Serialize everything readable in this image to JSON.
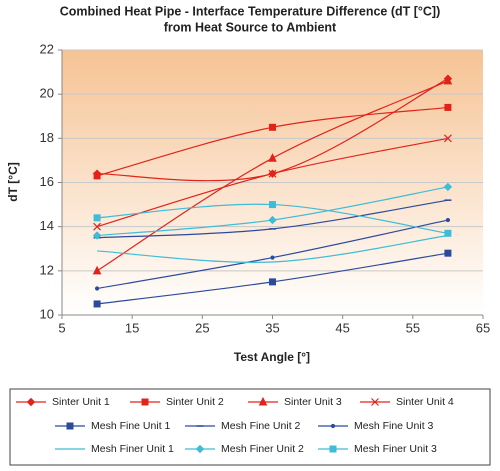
{
  "chart_data": {
    "type": "line",
    "title": [
      "Combined Heat Pipe - Interface Temperature Difference (dT [°C])",
      "from Heat Source to Ambient"
    ],
    "x_label": "Test Angle [°]",
    "y_label": "dT [°C]",
    "x": [
      10,
      35,
      60
    ],
    "xlim": [
      5,
      65
    ],
    "xticks": [
      5,
      15,
      25,
      35,
      45,
      55,
      65
    ],
    "ylim": [
      10,
      22
    ],
    "yticks": [
      10,
      12,
      14,
      16,
      18,
      20,
      22
    ],
    "grid": true,
    "smooth": true,
    "legend": "bottom",
    "series": [
      {
        "name": "Sinter Unit 1",
        "color": "#e2231a",
        "marker": "diamond",
        "values": [
          16.4,
          16.4,
          20.7
        ]
      },
      {
        "name": "Sinter Unit 2",
        "color": "#e2231a",
        "marker": "square",
        "values": [
          16.3,
          18.5,
          19.4
        ]
      },
      {
        "name": "Sinter Unit 3",
        "color": "#e2231a",
        "marker": "triangle",
        "values": [
          12.0,
          17.1,
          20.6
        ]
      },
      {
        "name": "Sinter Unit 4",
        "color": "#e2231a",
        "marker": "x",
        "values": [
          14.0,
          16.4,
          18.0
        ]
      },
      {
        "name": "Mesh Fine Unit 1",
        "color": "#2b4a9c",
        "marker": "square",
        "values": [
          10.5,
          11.5,
          12.8
        ]
      },
      {
        "name": "Mesh Fine Unit 2",
        "color": "#2b4a9c",
        "marker": "dash",
        "values": [
          13.5,
          13.9,
          15.2
        ]
      },
      {
        "name": "Mesh Fine Unit 3",
        "color": "#2b4a9c",
        "marker": "dot",
        "values": [
          11.2,
          12.6,
          14.3
        ]
      },
      {
        "name": "Mesh Finer Unit 1",
        "color": "#3fbcd6",
        "marker": "none",
        "values": [
          12.9,
          12.4,
          13.6
        ]
      },
      {
        "name": "Mesh Finer Unit 2",
        "color": "#3fbcd6",
        "marker": "diamond",
        "values": [
          13.6,
          14.3,
          15.8
        ]
      },
      {
        "name": "Mesh Finer Unit 3",
        "color": "#3fbcd6",
        "marker": "square",
        "values": [
          14.4,
          15.0,
          13.7
        ]
      }
    ]
  }
}
